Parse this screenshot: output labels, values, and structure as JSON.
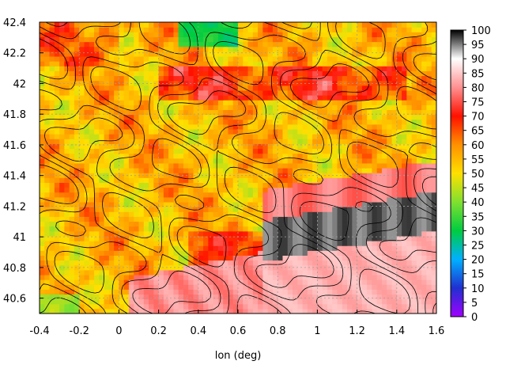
{
  "chart_data": {
    "type": "heatmap",
    "title": "",
    "xlabel": "lon (deg)",
    "ylabel": "",
    "xlim": [
      -0.4,
      1.6
    ],
    "ylim": [
      40.5,
      42.4
    ],
    "xticks": [
      "-0.4",
      "-0.2",
      "0",
      "0.2",
      "0.4",
      "0.6",
      "0.8",
      "1",
      "1.2",
      "1.4",
      "1.6"
    ],
    "yticks": [
      "40.6",
      "40.8",
      "41",
      "41.2",
      "41.4",
      "41.6",
      "41.8",
      "42",
      "42.2",
      "42.4"
    ],
    "colorbar": {
      "min": 0,
      "max": 100,
      "ticks": [
        "0",
        "5",
        "10",
        "15",
        "20",
        "25",
        "30",
        "35",
        "40",
        "45",
        "50",
        "55",
        "60",
        "65",
        "70",
        "75",
        "80",
        "85",
        "90",
        "95",
        "100"
      ],
      "colormap": [
        "#a000ff",
        "#2030d0",
        "#00b0ff",
        "#00cc40",
        "#80e030",
        "#ffe000",
        "#ff9000",
        "#ff1000",
        "#ff9090",
        "#ffffff",
        "#000000"
      ]
    },
    "grid": true,
    "overlay": "terrain contour lines",
    "field_features": [
      {
        "description": "high band (90-100)",
        "lon": [
          0.75,
          1.6
        ],
        "lat": [
          40.85,
          41.15
        ],
        "value": 98
      },
      {
        "description": "red region south-east",
        "lon": [
          0.3,
          1.6
        ],
        "lat": [
          40.5,
          40.85
        ],
        "value": 82
      },
      {
        "description": "red band along ridge",
        "lon": [
          0.75,
          1.6
        ],
        "lat": [
          41.15,
          41.35
        ],
        "value": 78
      },
      {
        "description": "orange ridge north",
        "lon": [
          0.2,
          1.4
        ],
        "lat": [
          41.9,
          42.1
        ],
        "value": 68
      },
      {
        "description": "general green field",
        "lon": [
          -0.4,
          1.6
        ],
        "lat": [
          41.2,
          42.4
        ],
        "value": 52
      },
      {
        "description": "blue spots north",
        "lon": [
          0.3,
          0.7
        ],
        "lat": [
          42.1,
          42.4
        ],
        "value": 30
      }
    ]
  }
}
